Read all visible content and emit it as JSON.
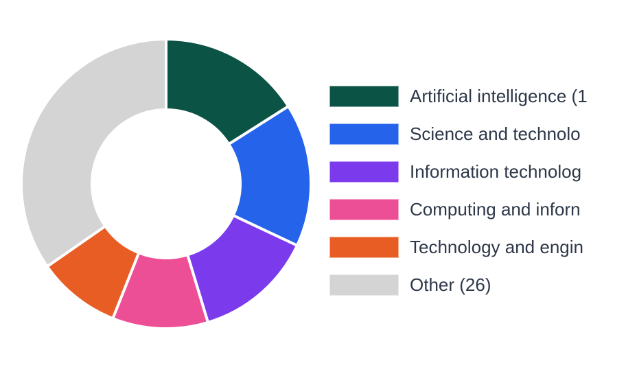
{
  "chart_data": {
    "type": "pie",
    "donut": true,
    "title": "",
    "legend_position": "right",
    "categories": [
      "Artificial intelligence (1",
      "Science and technolo",
      "Information technolog",
      "Computing and inforn",
      "Technology and engin",
      "Other (26)"
    ],
    "values": [
      12,
      12,
      10,
      8,
      7,
      26
    ],
    "colors": [
      "#0b5345",
      "#2563eb",
      "#7c3aed",
      "#ec4f96",
      "#e85d24",
      "#d4d4d4"
    ]
  }
}
